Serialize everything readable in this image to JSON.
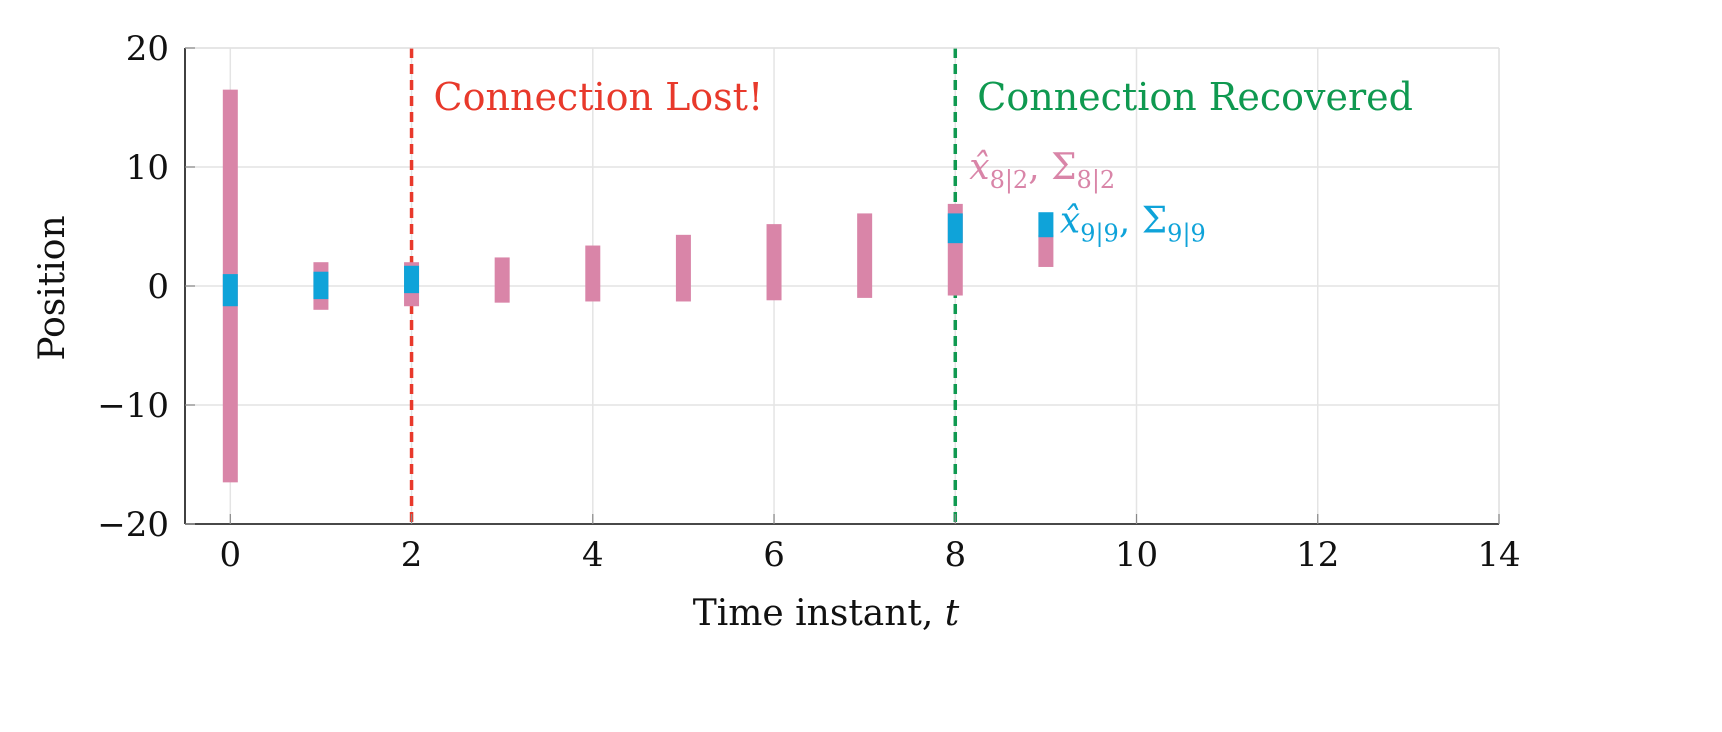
{
  "chart_data": {
    "type": "interval",
    "xlabel": "Time instant, ",
    "xlabel_var": "t",
    "ylabel": "Position",
    "xlim": [
      -0.5,
      14
    ],
    "ylim": [
      -20,
      20
    ],
    "xticks": [
      0,
      2,
      4,
      6,
      8,
      10,
      12,
      14
    ],
    "yticks": [
      -20,
      -10,
      0,
      10,
      20
    ],
    "ytick_labels": [
      "−20",
      "−10",
      "0",
      "10",
      "20"
    ],
    "grid": true,
    "colors": {
      "prediction": "#d985a8",
      "filtered": "#0fa3d9",
      "lost": "#e8392b",
      "recovered": "#0f9950"
    },
    "prediction_intervals": [
      {
        "t": 0,
        "low": -16.5,
        "high": 16.5
      },
      {
        "t": 1,
        "low": -2.0,
        "high": 2.0
      },
      {
        "t": 2,
        "low": -1.7,
        "high": 2.0
      },
      {
        "t": 3,
        "low": -1.4,
        "high": 2.4
      },
      {
        "t": 4,
        "low": -1.3,
        "high": 3.4
      },
      {
        "t": 5,
        "low": -1.3,
        "high": 4.3
      },
      {
        "t": 6,
        "low": -1.2,
        "high": 5.2
      },
      {
        "t": 7,
        "low": -1.0,
        "high": 6.1
      },
      {
        "t": 8,
        "low": -0.8,
        "high": 6.9
      },
      {
        "t": 9,
        "low": 1.6,
        "high": 4.3
      }
    ],
    "filtered_intervals": [
      {
        "t": 0,
        "low": -1.7,
        "high": 1.0
      },
      {
        "t": 1,
        "low": -1.1,
        "high": 1.2
      },
      {
        "t": 2,
        "low": -0.6,
        "high": 1.7
      },
      {
        "t": 8,
        "low": 3.6,
        "high": 6.1
      },
      {
        "t": 9,
        "low": 4.1,
        "high": 6.2
      }
    ],
    "events": [
      {
        "x": 2,
        "label": "Connection Lost!",
        "color_key": "lost"
      },
      {
        "x": 8,
        "label": "Connection Recovered",
        "color_key": "recovered"
      }
    ],
    "annotations": [
      {
        "x": 8,
        "y": 9.0,
        "var": "x̂",
        "sub1": "8|2",
        "sep": ", ",
        "sym": "Σ",
        "sub2": "8|2",
        "color_key": "prediction"
      },
      {
        "x": 9,
        "y": 4.5,
        "var": "x̂",
        "sub1": "9|9",
        "sep": ", ",
        "sym": "Σ",
        "sub2": "9|9",
        "color_key": "filtered"
      }
    ]
  }
}
